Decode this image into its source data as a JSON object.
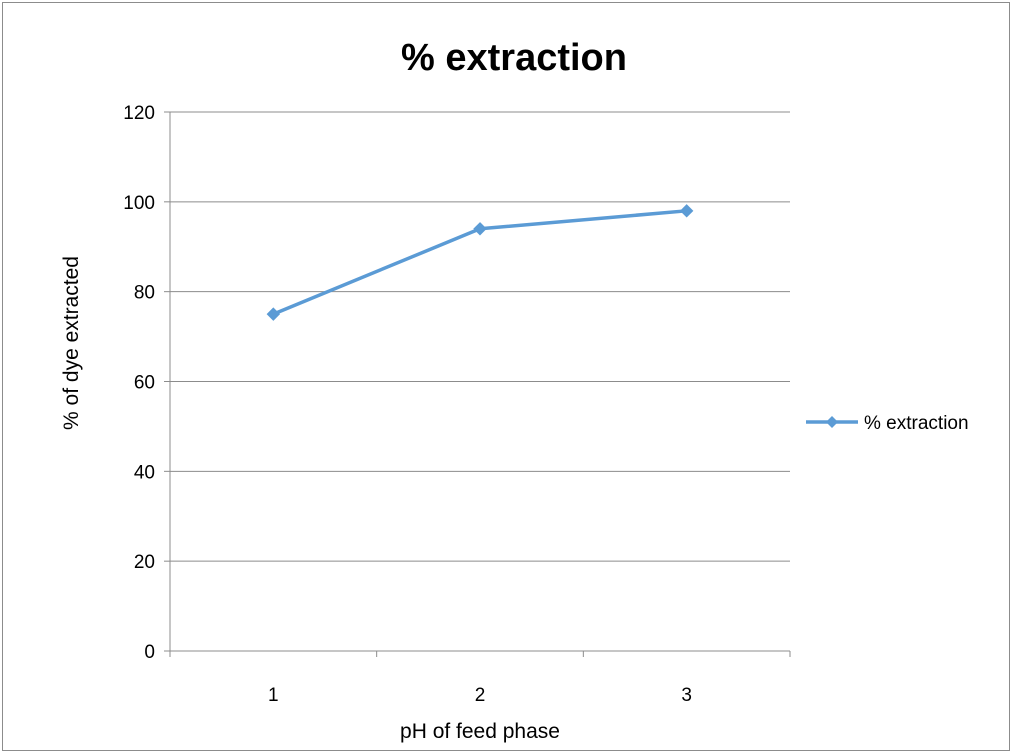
{
  "chart_data": {
    "type": "line",
    "title": "% extraction",
    "xlabel": "pH of feed phase",
    "ylabel": "% of dye extracted",
    "categories": [
      "1",
      "2",
      "3"
    ],
    "series": [
      {
        "name": "% extraction",
        "values": [
          75,
          94,
          98
        ],
        "color": "#5b9bd5"
      }
    ],
    "ylim": [
      0,
      120
    ],
    "yticks": [
      "0",
      "20",
      "40",
      "60",
      "80",
      "100",
      "120"
    ],
    "grid": true,
    "legend_position": "right",
    "marker": "diamond"
  }
}
